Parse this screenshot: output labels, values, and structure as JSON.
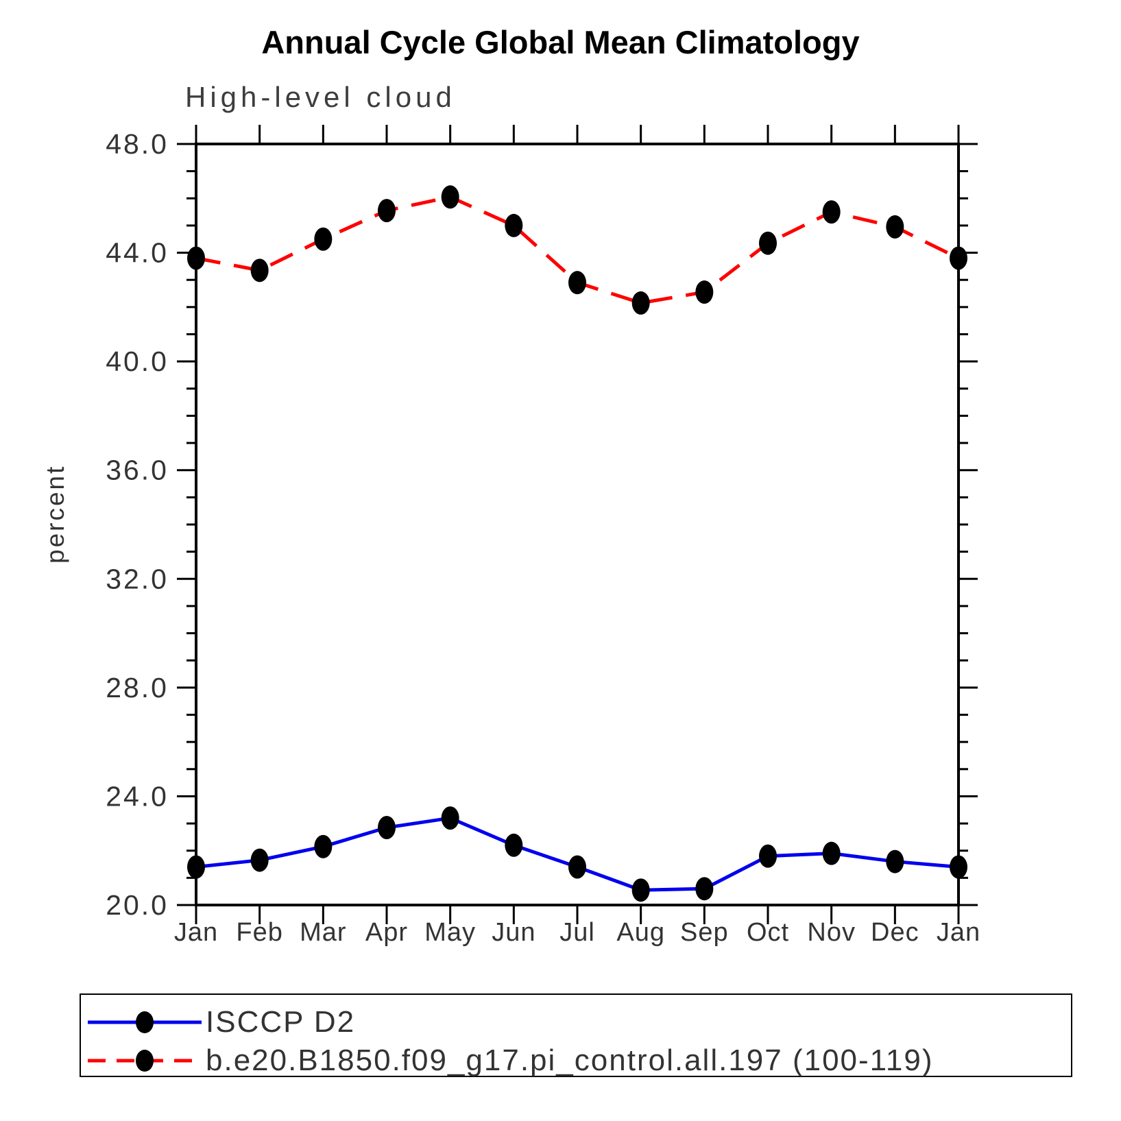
{
  "page": {
    "title": "Annual Cycle Global Mean Climatology",
    "subtitle": "High-level cloud"
  },
  "chart_data": {
    "type": "line",
    "title": "Annual Cycle Global Mean Climatology",
    "subtitle": "High-level cloud",
    "xlabel": "",
    "ylabel": "percent",
    "categories": [
      "Jan",
      "Feb",
      "Mar",
      "Apr",
      "May",
      "Jun",
      "Jul",
      "Aug",
      "Sep",
      "Oct",
      "Nov",
      "Dec",
      "Jan"
    ],
    "ylim": [
      20.0,
      48.0
    ],
    "ytick_major_interval": 4.0,
    "ytick_minor_interval": 1.0,
    "ytick_labels": [
      "20.0",
      "24.0",
      "28.0",
      "32.0",
      "36.0",
      "40.0",
      "44.0",
      "48.0"
    ],
    "grid": false,
    "legend_position": "bottom-left-box",
    "axis_color": "#000000",
    "marker_color": "#000000",
    "series": [
      {
        "name": "ISCCP D2",
        "color": "#0000ee",
        "line_style": "solid",
        "marker": "filled-circle",
        "values": [
          21.4,
          21.65,
          22.15,
          22.85,
          23.2,
          22.2,
          21.4,
          20.55,
          20.6,
          21.8,
          21.9,
          21.6,
          21.4
        ]
      },
      {
        "name": "b.e20.B1850.f09_g17.pi_control.all.197 (100-119)",
        "color": "#ff0000",
        "line_style": "dashed",
        "marker": "filled-circle",
        "values": [
          43.8,
          43.35,
          44.5,
          45.55,
          46.05,
          45.0,
          42.9,
          42.15,
          42.55,
          44.35,
          45.5,
          44.95,
          43.8
        ]
      }
    ]
  }
}
